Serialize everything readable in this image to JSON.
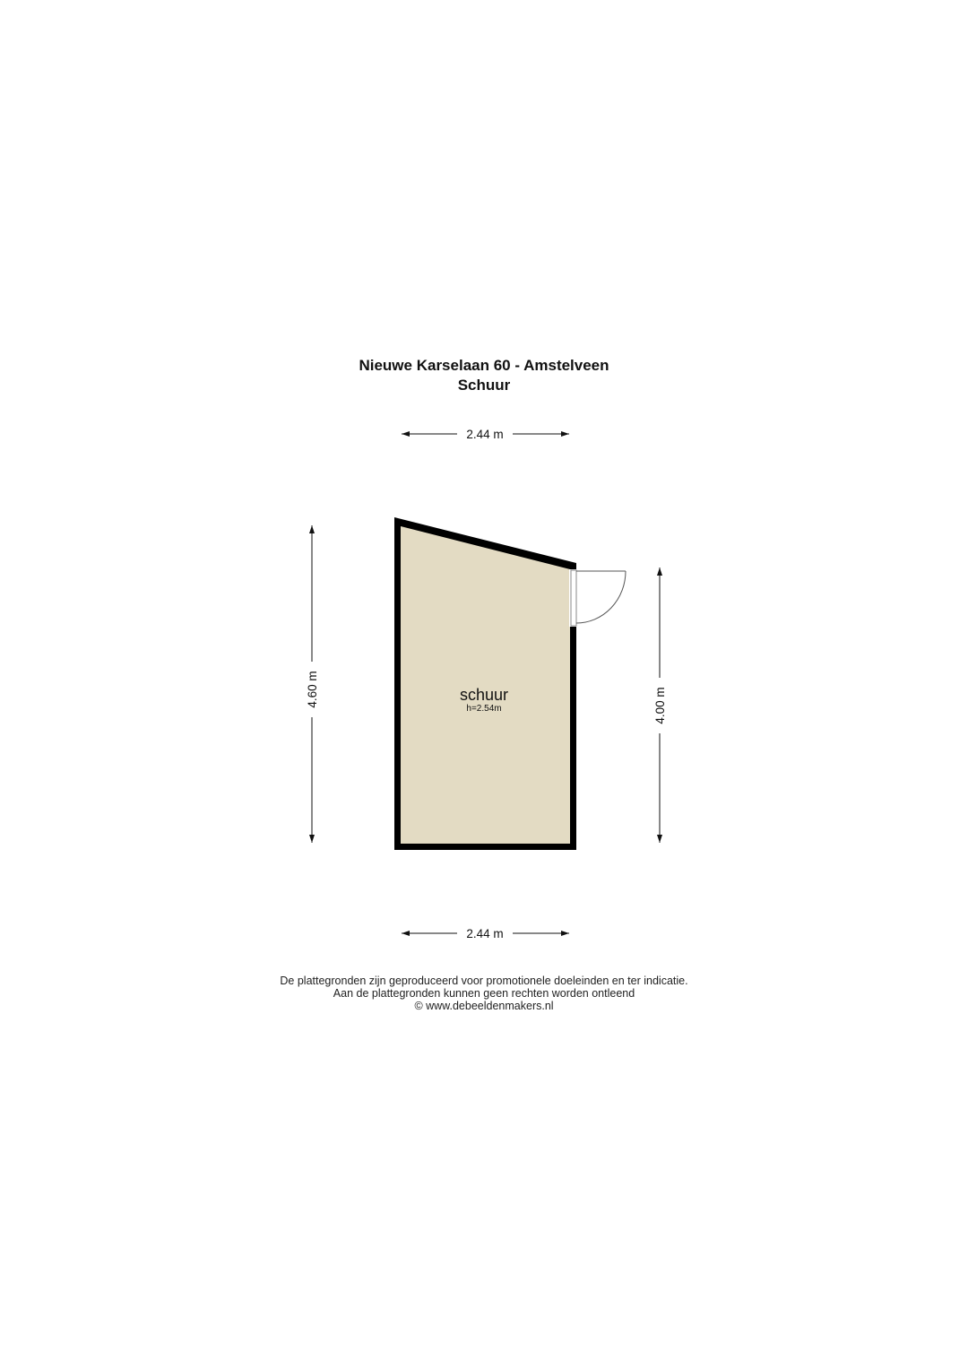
{
  "header": {
    "address": "Nieuwe Karselaan 60 - Amstelveen",
    "floor": "Schuur"
  },
  "room": {
    "name": "schuur",
    "height": "h=2.54m",
    "fill_color": "#e3dbc3",
    "wall_color": "#000000"
  },
  "dimensions": {
    "top": "2.44 m",
    "bottom": "2.44 m",
    "left": "4.60 m",
    "right": "4.00 m"
  },
  "footer": {
    "line1": "De plattegronden zijn geproduceerd voor promotionele doeleinden en ter indicatie.",
    "line2": "Aan de plattegronden kunnen geen rechten worden ontleend",
    "line3": "© www.debeeldenmakers.nl"
  }
}
